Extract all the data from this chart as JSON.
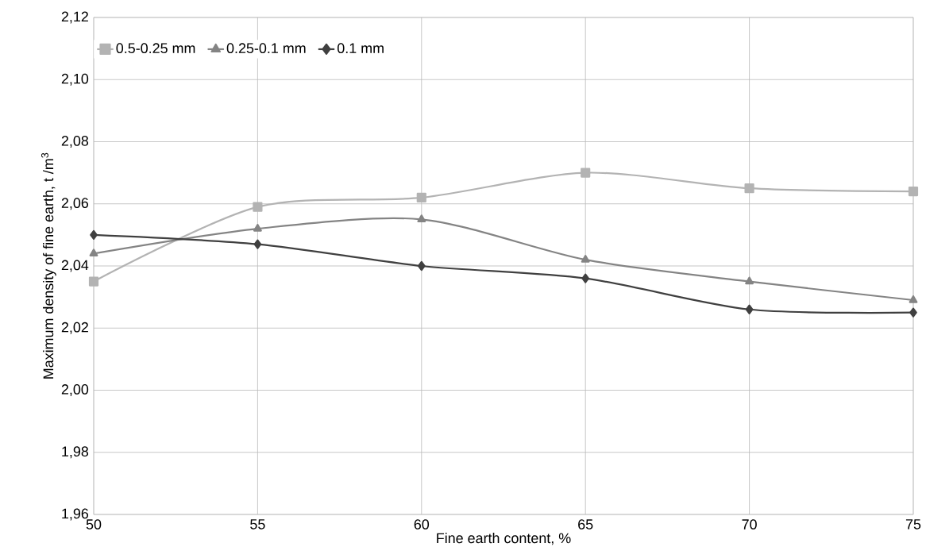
{
  "chart_data": {
    "type": "line",
    "xlabel": "Fine earth content, %",
    "ylabel": "Maximum density of fine earth, t /m$^{3}$",
    "x": [
      50,
      55,
      60,
      65,
      70,
      75
    ],
    "series": [
      {
        "name": "0.5-0.25 mm",
        "color": "#b3b3b3",
        "marker": "square",
        "values": [
          2.035,
          2.059,
          2.062,
          2.07,
          2.065,
          2.064
        ]
      },
      {
        "name": "0.25-0.1 mm",
        "color": "#848484",
        "marker": "triangle",
        "values": [
          2.044,
          2.052,
          2.055,
          2.042,
          2.035,
          2.029
        ]
      },
      {
        "name": "0.1 mm",
        "color": "#404040",
        "marker": "diamond",
        "values": [
          2.05,
          2.047,
          2.04,
          2.036,
          2.026,
          2.025
        ]
      }
    ],
    "xlim": [
      50,
      75
    ],
    "xticks": [
      50,
      55,
      60,
      65,
      70,
      75
    ],
    "ylim": [
      1.96,
      2.12
    ],
    "yticks": [
      {
        "value": 1.96,
        "label": "1,96"
      },
      {
        "value": 1.98,
        "label": "1,98"
      },
      {
        "value": 2.0,
        "label": "2,00"
      },
      {
        "value": 2.02,
        "label": "2,02"
      },
      {
        "value": 2.04,
        "label": "2,04"
      },
      {
        "value": 2.06,
        "label": "2,06"
      },
      {
        "value": 2.08,
        "label": "2,08"
      },
      {
        "value": 2.1,
        "label": "2,10"
      },
      {
        "value": 2.12,
        "label": "2,12"
      }
    ],
    "grid": true,
    "legend": "top left"
  }
}
